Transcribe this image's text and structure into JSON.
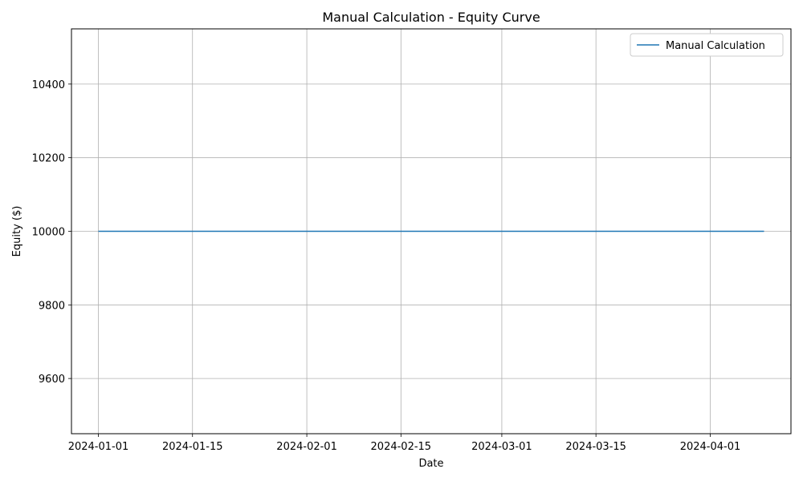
{
  "chart_data": {
    "type": "line",
    "title": "Manual Calculation - Equity Curve",
    "xlabel": "Date",
    "ylabel": "Equity ($)",
    "x_range": [
      "2023-12-28",
      "2024-04-13"
    ],
    "ylim": [
      9450,
      10550
    ],
    "x_ticks": [
      "2024-01-01",
      "2024-01-15",
      "2024-02-01",
      "2024-02-15",
      "2024-03-01",
      "2024-03-15",
      "2024-04-01"
    ],
    "y_ticks": [
      9600,
      9800,
      10000,
      10200,
      10400
    ],
    "grid": true,
    "legend_position": "top-right",
    "series": [
      {
        "name": "Manual Calculation",
        "color": "#1f77b4",
        "x": [
          "2024-01-01",
          "2024-04-09"
        ],
        "y": [
          10000,
          10000
        ]
      }
    ]
  }
}
